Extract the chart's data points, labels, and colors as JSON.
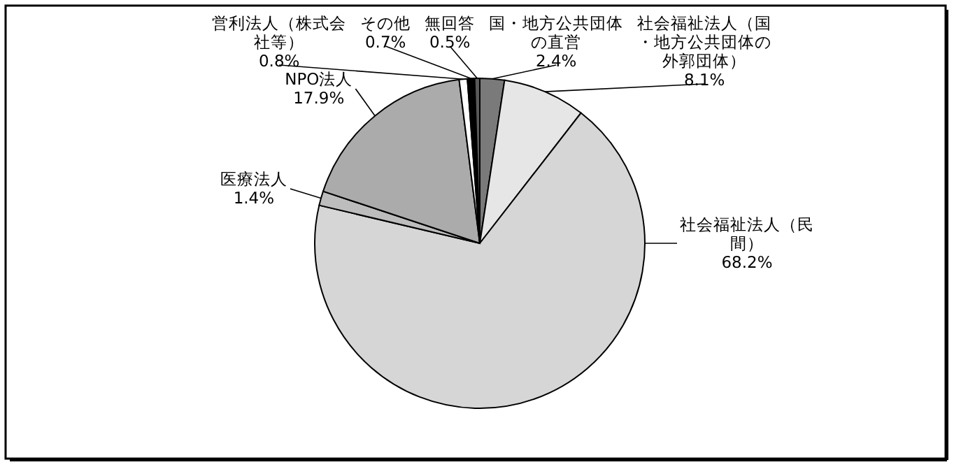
{
  "chart_data": {
    "type": "pie",
    "categories": [
      "国・地方公共団体の直営",
      "社会福祉法人（国・地方公共団体の外郭団体）",
      "社会福祉法人（民間）",
      "医療法人",
      "NPO法人",
      "営利法人（株式会社等）",
      "その他",
      "無回答"
    ],
    "values": [
      2.4,
      8.1,
      68.2,
      1.4,
      17.9,
      0.8,
      0.7,
      0.5
    ],
    "colors": [
      "#7a7a7a",
      "#e6e6e6",
      "#d6d6d6",
      "#bdbdbd",
      "#ababab",
      "#ffffff",
      "#000000",
      "#5a5a5a"
    ],
    "value_labels": [
      "2.4%",
      "8.1%",
      "68.2%",
      "1.4%",
      "17.9%",
      "0.8%",
      "0.7%",
      "0.5%"
    ]
  }
}
